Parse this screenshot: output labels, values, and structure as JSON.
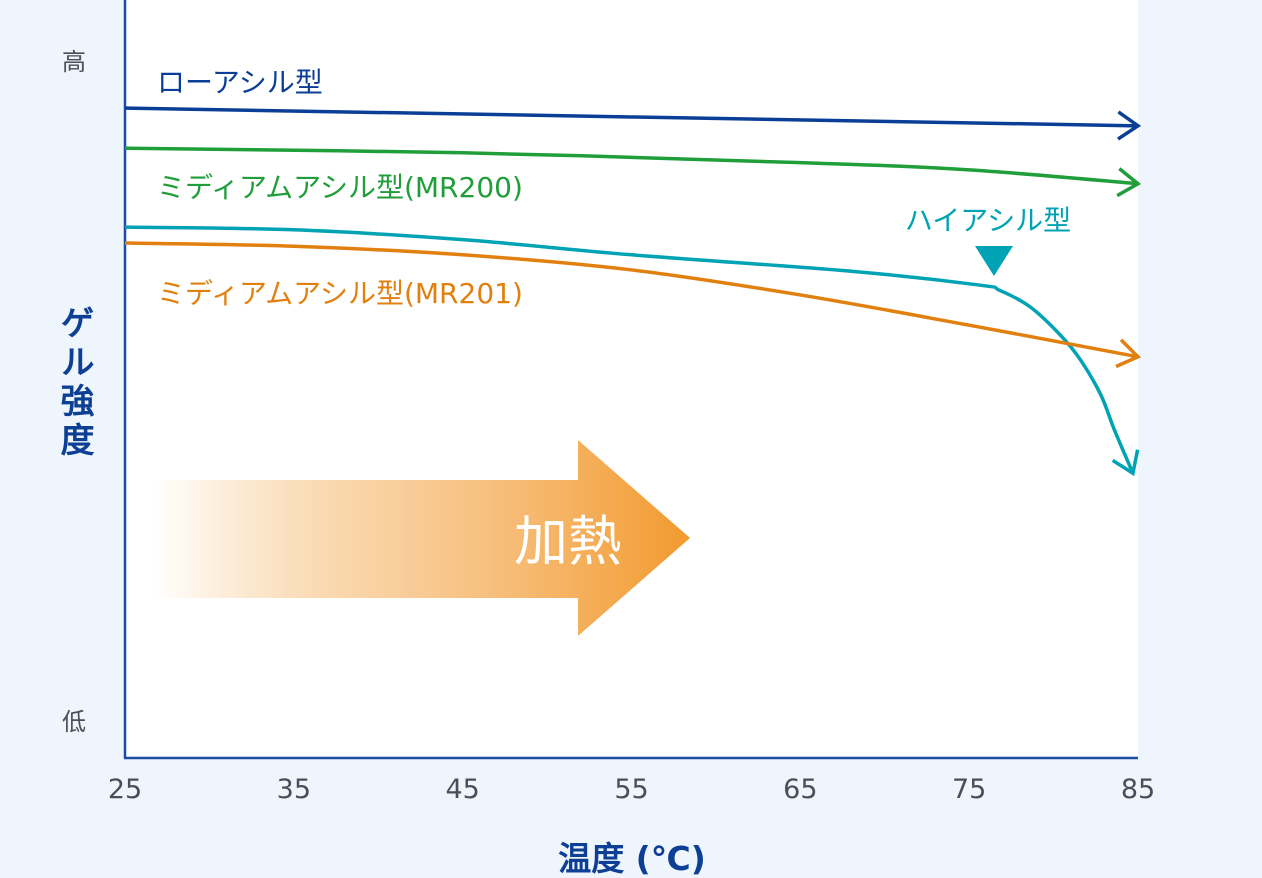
{
  "chart_data": {
    "type": "line",
    "title": "",
    "xlabel": "温度 (℃)",
    "ylabel": "ゲル強度",
    "x_ticks": [
      25,
      35,
      45,
      55,
      65,
      75,
      85
    ],
    "xlim": [
      25,
      85
    ],
    "ylim": [
      0,
      100
    ],
    "y_tick_labels": {
      "high": "高",
      "low": "低"
    },
    "grid": false,
    "series": [
      {
        "name": "ローアシル型",
        "color": "#0b3f97",
        "x": [
          25,
          85
        ],
        "y": [
          93.0,
          90.3
        ]
      },
      {
        "name": "ミディアムアシル型(MR200)",
        "color": "#1f9e3a",
        "x": [
          25,
          45,
          65,
          75,
          85
        ],
        "y": [
          86.9,
          86.2,
          84.7,
          83.6,
          81.5
        ]
      },
      {
        "name": "ハイアシル型",
        "color": "#00a3b4",
        "x": [
          25,
          35,
          45,
          55,
          68,
          75.6,
          76.8,
          78.6,
          80.4,
          81.6,
          82.8,
          83.6,
          84.7
        ],
        "y": [
          74.9,
          74.5,
          73.0,
          70.7,
          68.2,
          66.1,
          65.3,
          62.8,
          58.5,
          54.7,
          49.4,
          44.1,
          37.5
        ]
      },
      {
        "name": "ミディアムアシル型(MR201)",
        "color": "#e2800f",
        "x": [
          25,
          35,
          45,
          55,
          65,
          75,
          85
        ],
        "y": [
          72.5,
          72.0,
          70.7,
          68.4,
          64.6,
          60.0,
          55.2
        ]
      }
    ],
    "annotations": [
      {
        "text": "加熱",
        "type": "arrow",
        "color": "#f09a30"
      },
      {
        "text": "ハイアシル型",
        "type": "marker-triangle-down",
        "color": "#00a3b4"
      }
    ]
  }
}
